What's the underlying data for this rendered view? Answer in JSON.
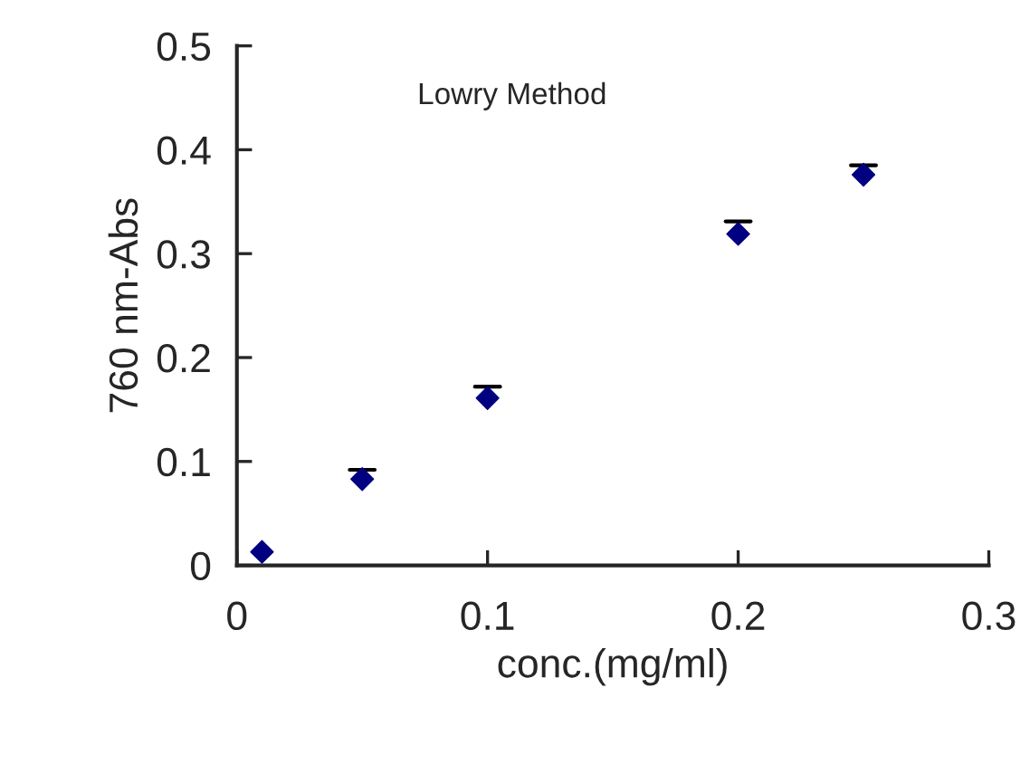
{
  "chart_data": {
    "type": "scatter",
    "x": [
      0.01,
      0.05,
      0.1,
      0.2,
      0.25
    ],
    "values": [
      0.013,
      0.083,
      0.161,
      0.319,
      0.376
    ],
    "errors": [
      null,
      [
        0.083,
        0.092
      ],
      [
        0.161,
        0.172
      ],
      [
        0.319,
        0.331
      ],
      [
        0.376,
        0.385
      ]
    ],
    "color": "#000080",
    "marker": "diamond",
    "xlabel": "conc.(mg/ml)",
    "ylabel": "760 nm-Abs",
    "annotations": [
      "Lowry Method"
    ],
    "xlim": [
      0,
      0.3
    ],
    "xticks": [
      0,
      0.1,
      0.2,
      0.3
    ],
    "ylim": [
      0,
      0.5
    ],
    "yticks": [
      0,
      0.1,
      0.2,
      0.3,
      0.4,
      0.5
    ],
    "grid": false
  }
}
